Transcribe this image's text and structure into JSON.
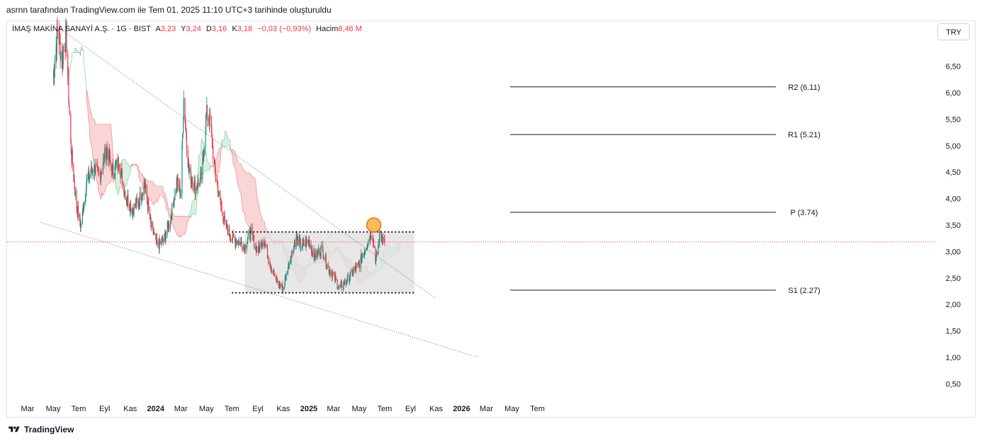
{
  "header": {
    "attribution": "asrnn tarafından TradingView.com ile Tem 01, 2025 11:10 UTC+3 tarihinde oluşturuldu"
  },
  "legend": {
    "symbol": "İMAŞ MAKİNA SANAYİ A.Ş. · 1G · BIST",
    "open_label": "A",
    "open": "3,23",
    "high_label": "Y",
    "high": "3,24",
    "low_label": "D",
    "low": "3,16",
    "close_label": "K",
    "close": "3,18",
    "change": "−0,03 (−0,93%)",
    "volume_label": "Hacim",
    "volume": "8,46 M"
  },
  "currency_button": "TRY",
  "footer": {
    "brand": "TradingView"
  },
  "colors": {
    "up": "#089981",
    "down": "#f23645",
    "cloud_red": "#f7c7c7",
    "cloud_green": "#cdebd9",
    "range_box": "#e1e1e1",
    "price_line": "#f23645"
  },
  "chart_data": {
    "type": "candlestick",
    "symbol": "IMASM",
    "timeframe": "1D",
    "ylim": [
      0.3,
      7.3
    ],
    "y_ticks": [
      "0,50",
      "1,00",
      "1,50",
      "2,00",
      "2,50",
      "3,00",
      "3,50",
      "4,00",
      "4,50",
      "5,00",
      "5,50",
      "6,00",
      "6,50"
    ],
    "x_ticks": [
      "Mar",
      "May",
      "Tem",
      "Eyl",
      "Kas",
      "2024",
      "Mar",
      "May",
      "Tem",
      "Eyl",
      "Kas",
      "2025",
      "Mar",
      "May",
      "Tem",
      "Eyl",
      "Kas",
      "2026",
      "Mar",
      "May",
      "Tem"
    ],
    "x_tick_dates": [
      "2023-03-01",
      "2023-05-01",
      "2023-07-01",
      "2023-09-01",
      "2023-11-01",
      "2024-01-01",
      "2024-03-01",
      "2024-05-01",
      "2024-07-01",
      "2024-09-01",
      "2024-11-01",
      "2025-01-01",
      "2025-03-01",
      "2025-05-01",
      "2025-07-01",
      "2025-09-01",
      "2025-11-01",
      "2026-01-01",
      "2026-03-01",
      "2026-05-01",
      "2026-07-01"
    ],
    "last_price": 3.18,
    "pivot_levels": [
      {
        "label": "R2 (6.11)",
        "value": 6.11
      },
      {
        "label": "R1 (5.21)",
        "value": 5.21
      },
      {
        "label": "P (3.74)",
        "value": 3.74
      },
      {
        "label": "S1 (2.27)",
        "value": 2.27
      }
    ],
    "range_box": {
      "start": "2024-08-01",
      "end": "2025-09-10",
      "top": 3.37,
      "bottom": 2.22
    },
    "horizontal_dotted": [
      {
        "start": "2024-07-01",
        "end": "2025-09-10",
        "value": 3.37
      },
      {
        "start": "2024-07-01",
        "end": "2025-09-10",
        "value": 2.22
      }
    ],
    "trendlines": [
      {
        "name": "upper",
        "start": [
          "2023-05-01",
          7.3
        ],
        "end": [
          "2025-10-30",
          2.12
        ]
      },
      {
        "name": "lower",
        "start": [
          "2023-04-01",
          3.55
        ],
        "end": [
          "2026-02-10",
          1.0
        ]
      }
    ],
    "marker": {
      "date": "2025-06-05",
      "value": 3.5
    },
    "price_path": [
      [
        "2023-05-01",
        6.3
      ],
      [
        "2023-05-12",
        7.2
      ],
      [
        "2023-05-22",
        6.6
      ],
      [
        "2023-06-01",
        7.1
      ],
      [
        "2023-06-12",
        5.0
      ],
      [
        "2023-06-25",
        3.9
      ],
      [
        "2023-07-06",
        3.5
      ],
      [
        "2023-07-20",
        4.3
      ],
      [
        "2023-08-05",
        4.6
      ],
      [
        "2023-08-20",
        4.4
      ],
      [
        "2023-09-05",
        4.95
      ],
      [
        "2023-09-20",
        4.5
      ],
      [
        "2023-10-05",
        4.7
      ],
      [
        "2023-10-20",
        4.1
      ],
      [
        "2023-11-05",
        3.8
      ],
      [
        "2023-11-20",
        3.9
      ],
      [
        "2023-12-05",
        4.3
      ],
      [
        "2023-12-20",
        3.5
      ],
      [
        "2024-01-05",
        3.1
      ],
      [
        "2024-01-20",
        3.2
      ],
      [
        "2024-02-05",
        3.6
      ],
      [
        "2024-02-20",
        4.3
      ],
      [
        "2024-03-01",
        4.1
      ],
      [
        "2024-03-08",
        5.9
      ],
      [
        "2024-03-20",
        4.5
      ],
      [
        "2024-04-05",
        4.2
      ],
      [
        "2024-04-20",
        4.4
      ],
      [
        "2024-05-01",
        5.6
      ],
      [
        "2024-05-10",
        5.5
      ],
      [
        "2024-05-20",
        4.6
      ],
      [
        "2024-06-01",
        4.0
      ],
      [
        "2024-06-15",
        3.5
      ],
      [
        "2024-07-01",
        3.25
      ],
      [
        "2024-07-15",
        3.2
      ],
      [
        "2024-08-01",
        3.1
      ],
      [
        "2024-08-15",
        3.35
      ],
      [
        "2024-09-01",
        3.0
      ],
      [
        "2024-09-15",
        3.25
      ],
      [
        "2024-10-01",
        2.75
      ],
      [
        "2024-10-15",
        2.45
      ],
      [
        "2024-11-01",
        2.3
      ],
      [
        "2024-11-15",
        2.8
      ],
      [
        "2024-12-01",
        3.25
      ],
      [
        "2024-12-15",
        3.1
      ],
      [
        "2025-01-01",
        3.2
      ],
      [
        "2025-01-15",
        2.9
      ],
      [
        "2025-02-01",
        3.05
      ],
      [
        "2025-02-15",
        2.7
      ],
      [
        "2025-03-01",
        2.55
      ],
      [
        "2025-03-15",
        2.3
      ],
      [
        "2025-04-01",
        2.45
      ],
      [
        "2025-04-15",
        2.6
      ],
      [
        "2025-05-01",
        2.75
      ],
      [
        "2025-05-15",
        3.05
      ],
      [
        "2025-06-01",
        3.4
      ],
      [
        "2025-06-10",
        2.8
      ],
      [
        "2025-06-20",
        3.35
      ],
      [
        "2025-07-01",
        3.18
      ]
    ]
  }
}
